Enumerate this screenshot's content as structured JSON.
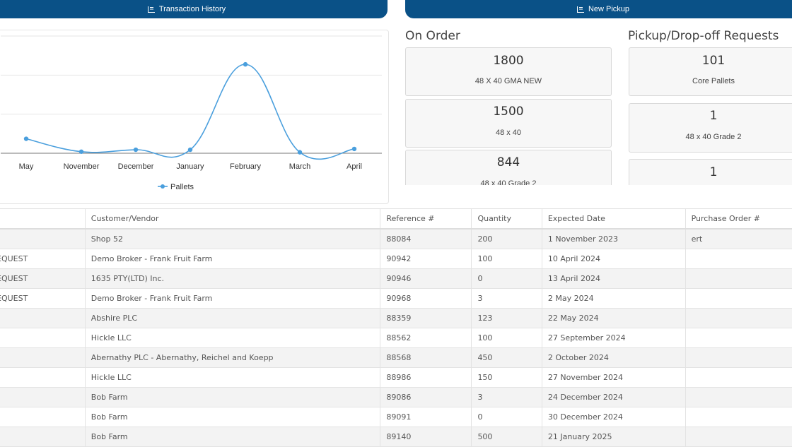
{
  "toolbar": {
    "transaction_history_label": "Transaction History",
    "new_pickup_label": "New Pickup",
    "icon": "bar-chart-icon"
  },
  "chart_data": {
    "type": "line",
    "categories": [
      "May",
      "November",
      "December",
      "January",
      "February",
      "March",
      "April"
    ],
    "series": [
      {
        "name": "Pallets",
        "values": [
          370,
          40,
          90,
          90,
          2275,
          25,
          110
        ],
        "color": "#4a9fdd"
      }
    ],
    "ylim": [
      0,
      3000
    ],
    "grid": true,
    "legend": "bottom",
    "title": "",
    "xlabel": "",
    "ylabel": ""
  },
  "on_order": {
    "title": "On Order",
    "items": [
      {
        "qty": "1800",
        "desc": "48 X 40 GMA NEW"
      },
      {
        "qty": "1500",
        "desc": "48 x 40"
      },
      {
        "qty": "844",
        "desc": "48 x 40 Grade 2"
      }
    ]
  },
  "pickup_requests": {
    "title": "Pickup/Drop-off Requests",
    "items": [
      {
        "qty": "101",
        "desc": "Core Pallets"
      },
      {
        "qty": "1",
        "desc": "48 x 40 Grade 2"
      },
      {
        "qty": "1",
        "desc": ""
      }
    ]
  },
  "table": {
    "headers": [
      "",
      "Customer/Vendor",
      "Reference #",
      "Quantity",
      "Expected Date",
      "Purchase Order #"
    ],
    "rows": [
      [
        "",
        "Shop 52",
        "88084",
        "200",
        "1 November 2023",
        "ert"
      ],
      [
        "EQUEST",
        "Demo Broker - Frank Fruit Farm",
        "90942",
        "100",
        "10 April 2024",
        ""
      ],
      [
        "EQUEST",
        "1635 PTY(LTD) Inc.",
        "90946",
        "0",
        "13 April 2024",
        ""
      ],
      [
        "EQUEST",
        "Demo Broker - Frank Fruit Farm",
        "90968",
        "3",
        "2 May 2024",
        ""
      ],
      [
        "",
        "Abshire PLC",
        "88359",
        "123",
        "22 May 2024",
        ""
      ],
      [
        "",
        "Hickle LLC",
        "88562",
        "100",
        "27 September 2024",
        ""
      ],
      [
        "",
        "Abernathy PLC - Abernathy, Reichel and Koepp",
        "88568",
        "450",
        "2 October 2024",
        ""
      ],
      [
        "",
        "Hickle LLC",
        "88986",
        "150",
        "27 November 2024",
        ""
      ],
      [
        "",
        "Bob Farm",
        "89086",
        "3",
        "24 December 2024",
        ""
      ],
      [
        "",
        "Bob Farm",
        "89091",
        "0",
        "30 December 2024",
        ""
      ],
      [
        "",
        "Bob Farm",
        "89140",
        "500",
        "21 January 2025",
        ""
      ]
    ]
  }
}
